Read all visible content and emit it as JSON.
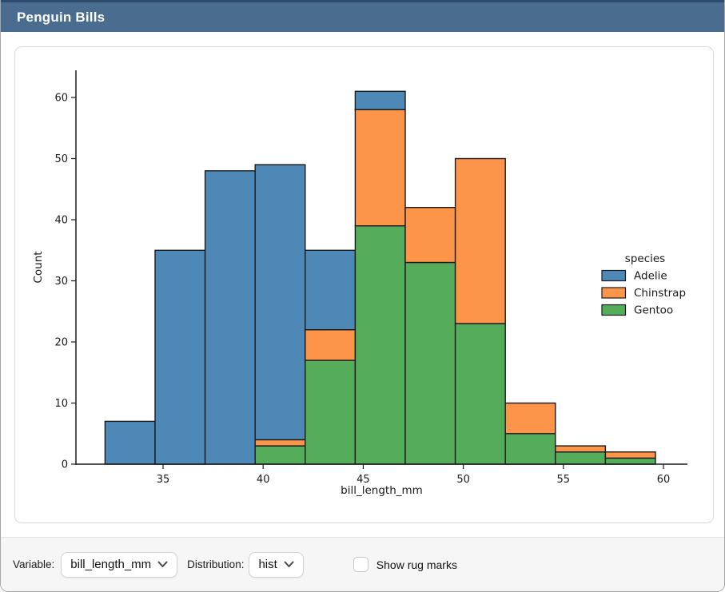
{
  "window": {
    "title": "Penguin Bills"
  },
  "theme": {
    "header_bg": "#4a6c8e",
    "header_top_strip": "#2d4b6d",
    "card_border": "#d9d9d9",
    "controlbar_bg": "#f6f6f7"
  },
  "chart_data": {
    "type": "bar",
    "subtype": "stacked-histogram",
    "title": "",
    "xlabel": "bill_length_mm",
    "ylabel": "Count",
    "bin_edges": [
      32.1,
      34.6,
      37.1,
      39.6,
      42.1,
      44.6,
      47.1,
      49.6,
      52.1,
      54.6,
      57.1,
      59.6
    ],
    "series": [
      {
        "name": "Adelie",
        "color": "#4e88b6",
        "counts": [
          7,
          35,
          48,
          45,
          13,
          3,
          0,
          0,
          0,
          0,
          0
        ]
      },
      {
        "name": "Chinstrap",
        "color": "#fc9549",
        "counts": [
          0,
          0,
          0,
          1,
          5,
          19,
          9,
          27,
          5,
          1,
          1
        ]
      },
      {
        "name": "Gentoo",
        "color": "#55ad5c",
        "counts": [
          0,
          0,
          0,
          3,
          17,
          39,
          33,
          23,
          5,
          2,
          1
        ]
      }
    ],
    "stack_order_bottom_to_top": [
      "Gentoo",
      "Chinstrap",
      "Adelie"
    ],
    "stacked_totals": [
      7,
      35,
      48,
      49,
      35,
      61,
      42,
      50,
      10,
      3,
      2
    ],
    "x_ticks": [
      35,
      40,
      45,
      50,
      55,
      60
    ],
    "y_ticks": [
      0,
      10,
      20,
      30,
      40,
      50,
      60
    ],
    "ylim": [
      0,
      64.4
    ],
    "grid": false,
    "bar_edge_color": "#1a1a1a",
    "legend": {
      "title": "species",
      "entries": [
        "Adelie",
        "Chinstrap",
        "Gentoo"
      ],
      "position": "right",
      "frame": false
    }
  },
  "controls": {
    "variable_label": "Variable:",
    "variable_value": "bill_length_mm",
    "distribution_label": "Distribution:",
    "distribution_value": "hist",
    "rug_label": "Show rug marks",
    "rug_checked": false
  },
  "icons": {
    "chevron_down": "⌄"
  }
}
